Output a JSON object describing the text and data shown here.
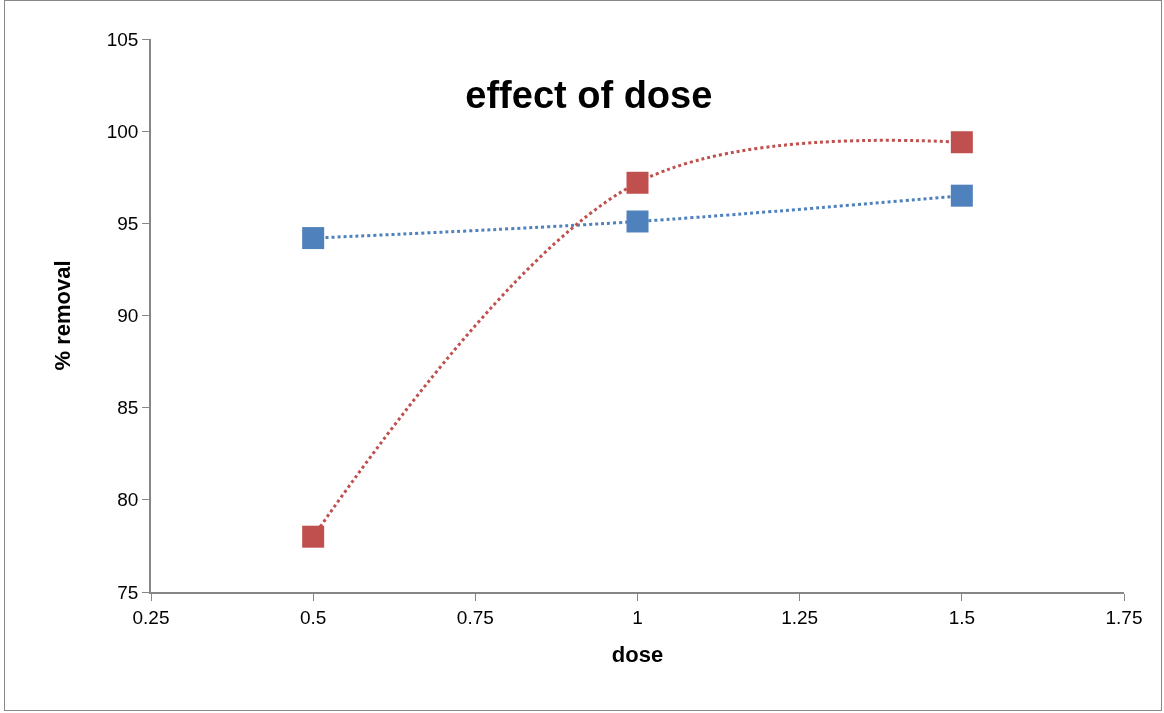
{
  "chart_data": {
    "type": "line",
    "title": "effect of dose",
    "xlabel": "dose",
    "ylabel": "% removal",
    "x": [
      0.5,
      1,
      1.5
    ],
    "series": [
      {
        "color": "#4f81bd",
        "values": [
          94.2,
          95.1,
          96.5
        ]
      },
      {
        "color": "#c0504d",
        "values": [
          78.0,
          97.2,
          99.4
        ]
      }
    ],
    "xlim": [
      0.25,
      1.75
    ],
    "xticks": [
      0.25,
      0.5,
      0.75,
      1,
      1.25,
      1.5,
      1.75
    ],
    "ylim": [
      75,
      105
    ],
    "yticks": [
      75,
      80,
      85,
      90,
      95,
      100,
      105
    ],
    "grid": false,
    "marker": "square",
    "line_style": "dotted"
  }
}
